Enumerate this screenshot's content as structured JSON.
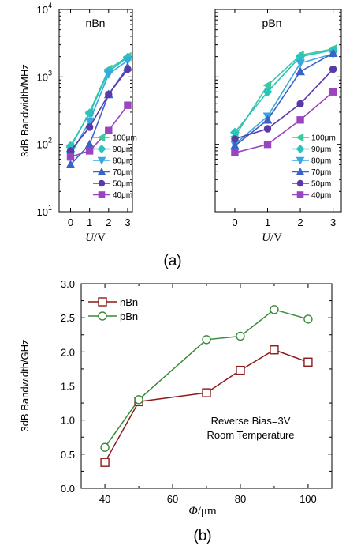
{
  "colors": {
    "100um": "#3fc8a0",
    "90um": "#2bc3bc",
    "80um": "#39a7e0",
    "70um": "#3a62c8",
    "50um": "#5a3aa8",
    "40um": "#9a45c0",
    "nBn": "#8b1a1a",
    "pBn": "#3a8a3a"
  },
  "chart_data": [
    {
      "type": "line",
      "panel": "a-left",
      "title": "nBn",
      "ylabel": "3dB Bandwidth/MHz",
      "xlabel": "U/V",
      "xlabel_italic": "U",
      "xlabel_rest": "/V",
      "yscale": "log",
      "ylim": [
        10,
        10000
      ],
      "xlim": [
        -0.6,
        3.25
      ],
      "x": [
        0,
        1,
        2,
        3
      ],
      "xticks": [
        "0",
        "1",
        "2",
        "3"
      ],
      "yticks": [
        {
          "base": "10",
          "exp": "1"
        },
        {
          "base": "10",
          "exp": "2"
        },
        {
          "base": "10",
          "exp": "3"
        },
        {
          "base": "10",
          "exp": "4"
        }
      ],
      "series": [
        {
          "name": "100μm",
          "marker": "tri-left",
          "values": [
            90,
            300,
            1300,
            2000
          ]
        },
        {
          "name": "90μm",
          "marker": "diamond",
          "values": [
            95,
            290,
            1200,
            1950
          ]
        },
        {
          "name": "80μm",
          "marker": "tri-down",
          "values": [
            70,
            220,
            1100,
            1750
          ]
        },
        {
          "name": "70μm",
          "marker": "tri-up",
          "values": [
            50,
            100,
            550,
            1400
          ]
        },
        {
          "name": "50μm",
          "marker": "circle",
          "values": [
            80,
            180,
            550,
            1300
          ]
        },
        {
          "name": "40μm",
          "marker": "square",
          "values": [
            65,
            80,
            160,
            380
          ]
        }
      ]
    },
    {
      "type": "line",
      "panel": "a-right",
      "title": "pBn",
      "xlabel": "U/V",
      "xlabel_italic": "U",
      "xlabel_rest": "/V",
      "yscale": "log",
      "ylim": [
        10,
        10000
      ],
      "xlim": [
        -0.6,
        3.25
      ],
      "x": [
        0,
        1,
        2,
        3
      ],
      "xticks": [
        "0",
        "1",
        "2",
        "3"
      ],
      "series": [
        {
          "name": "100μm",
          "marker": "tri-left",
          "values": [
            130,
            750,
            2100,
            2600
          ]
        },
        {
          "name": "90μm",
          "marker": "diamond",
          "values": [
            150,
            600,
            2000,
            2500
          ]
        },
        {
          "name": "80μm",
          "marker": "tri-down",
          "values": [
            100,
            260,
            1600,
            2200
          ]
        },
        {
          "name": "70μm",
          "marker": "tri-up",
          "values": [
            95,
            230,
            1200,
            2250
          ]
        },
        {
          "name": "50μm",
          "marker": "circle",
          "values": [
            120,
            170,
            400,
            1300
          ]
        },
        {
          "name": "40μm",
          "marker": "square",
          "values": [
            75,
            100,
            230,
            600
          ]
        }
      ]
    },
    {
      "type": "line",
      "panel": "b",
      "ylabel": "3dB Bandwidth/GHz",
      "xlabel": "Φ/μm",
      "xlabel_italic": "Φ",
      "xlabel_rest": "/μm",
      "ylim": [
        0.0,
        3.0
      ],
      "xlim": [
        33,
        107
      ],
      "xticks": [
        "40",
        "60",
        "80",
        "100"
      ],
      "xtick_values": [
        40,
        60,
        80,
        100
      ],
      "yticks": [
        "0.0",
        "0.5",
        "1.0",
        "1.5",
        "2.0",
        "2.5",
        "3.0"
      ],
      "ytick_values": [
        0.0,
        0.5,
        1.0,
        1.5,
        2.0,
        2.5,
        3.0
      ],
      "x": [
        40,
        50,
        70,
        80,
        90,
        100
      ],
      "series": [
        {
          "name": "nBn",
          "marker": "square-open",
          "values": [
            0.38,
            1.27,
            1.4,
            1.73,
            2.03,
            1.85
          ]
        },
        {
          "name": "pBn",
          "marker": "circle-open",
          "values": [
            0.6,
            1.3,
            2.18,
            2.23,
            2.62,
            2.48
          ]
        }
      ],
      "annotation": [
        "Reverse Bias=3V",
        "Room Temperature"
      ]
    }
  ],
  "captions": {
    "a": "(a)",
    "b": "(b)"
  }
}
